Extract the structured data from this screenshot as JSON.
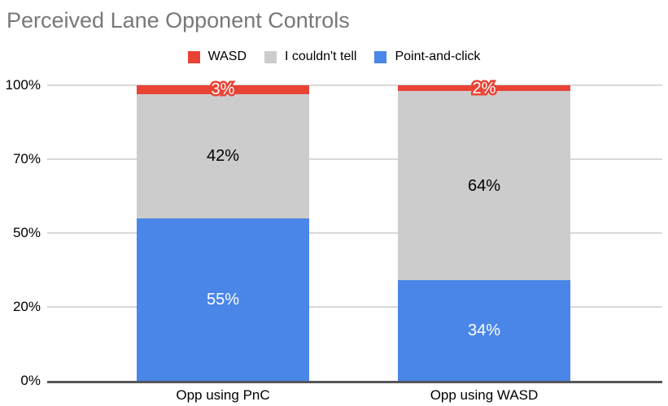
{
  "chart_data": {
    "type": "bar",
    "stacked": true,
    "title": "Perceived Lane Opponent Controls",
    "categories": [
      "Opp using PnC",
      "Opp using WASD"
    ],
    "series": [
      {
        "name": "Point-and-click",
        "color": "#4a86e8",
        "values": [
          55,
          34
        ],
        "data_labels": [
          "55%",
          "34%"
        ],
        "label_color": "#ffffff"
      },
      {
        "name": "I couldn't tell",
        "color": "#cccccc",
        "values": [
          42,
          64
        ],
        "data_labels": [
          "42%",
          "64%"
        ],
        "label_color": "#000000"
      },
      {
        "name": "WASD",
        "color": "#e94335",
        "values": [
          3,
          2
        ],
        "data_labels": [
          "3%",
          "2%"
        ],
        "label_color": "#ffffff",
        "label_halo_color": "#e94335"
      }
    ],
    "legend": {
      "position": "top",
      "items": [
        {
          "label": "WASD",
          "color": "#e94335"
        },
        {
          "label": "I couldn't tell",
          "color": "#cccccc"
        },
        {
          "label": "Point-and-click",
          "color": "#4a86e8"
        }
      ]
    },
    "y_axis": {
      "tick_labels": [
        "0%",
        "20%",
        "50%",
        "70%",
        "100%"
      ],
      "equally_spaced_ticks": true,
      "ylim": [
        0,
        100
      ]
    },
    "xlabel": "",
    "ylabel": "",
    "grid": "horizontal",
    "colors": {
      "background": "#ffffff",
      "title_text": "#787878",
      "gridline": "#d9d9d9",
      "axis_line": "#55565a",
      "axis_label_text": "#000000"
    }
  }
}
